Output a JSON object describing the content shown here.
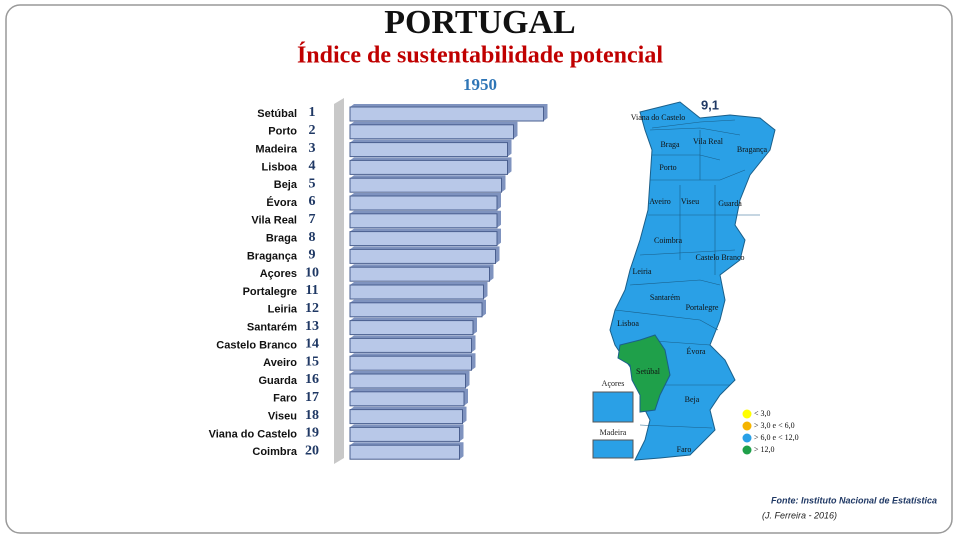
{
  "chart_data": {
    "type": "bar",
    "orientation": "horizontal",
    "title": "PORTUGAL",
    "subtitle": "Índice de sustentabilidade potencial",
    "year": "1950",
    "categories": [
      "Setúbal",
      "Porto",
      "Madeira",
      "Lisboa",
      "Beja",
      "Évora",
      "Vila Real",
      "Braga",
      "Bragança",
      "Açores",
      "Portalegre",
      "Leiria",
      "Santarém",
      "Castelo Branco",
      "Aveiro",
      "Guarda",
      "Faro",
      "Viseu",
      "Viana do Castelo",
      "Coimbra"
    ],
    "ranks": [
      1,
      2,
      3,
      4,
      5,
      6,
      7,
      8,
      9,
      10,
      11,
      12,
      13,
      14,
      15,
      16,
      17,
      18,
      19,
      20
    ],
    "values": [
      12.9,
      10.9,
      10.5,
      10.5,
      10.1,
      9.8,
      9.8,
      9.8,
      9.7,
      9.3,
      8.9,
      8.8,
      8.2,
      8.1,
      8.1,
      7.7,
      7.6,
      7.5,
      7.3,
      7.3
    ],
    "color": "#b8c8e8",
    "xlim": [
      0,
      14
    ]
  },
  "map": {
    "national_value": "9,1",
    "regions": [
      "Viana do Castelo",
      "Vila Real",
      "Bragança",
      "Braga",
      "Porto",
      "Aveiro",
      "Viseu",
      "Guarda",
      "Coimbra",
      "Castelo Branco",
      "Leiria",
      "Santarém",
      "Portalegre",
      "Lisboa",
      "Évora",
      "Setúbal",
      "Beja",
      "Faro"
    ],
    "insets": [
      "Açores",
      "Madeira"
    ],
    "legend": [
      {
        "label": "< 3,0",
        "color": "#ffff00"
      },
      {
        "label": "> 3,0  e < 6,0",
        "color": "#f5b400"
      },
      {
        "label": "> 6,0  e < 12,0",
        "color": "#2aa0e6"
      },
      {
        "label": "> 12,0",
        "color": "#1fa04a"
      }
    ]
  },
  "source": "Fonte: Instituto Nacional de Estatística",
  "author": "(J. Ferreira - 2016)"
}
